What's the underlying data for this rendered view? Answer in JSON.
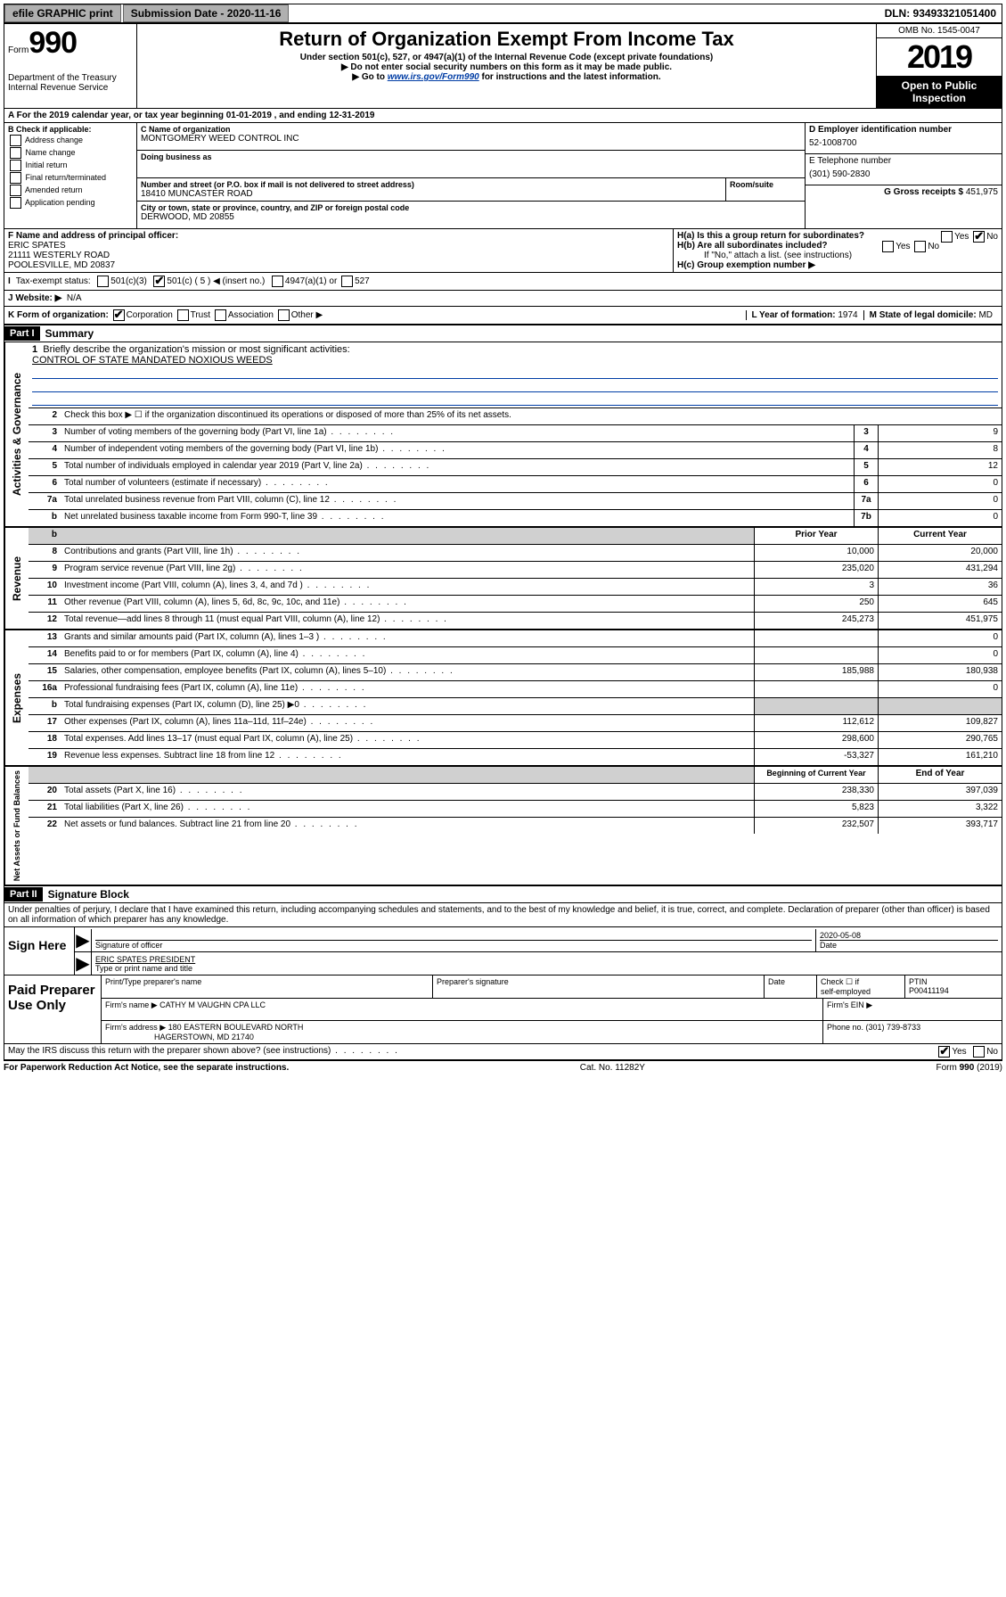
{
  "topbar": {
    "efile": "efile GRAPHIC print",
    "subdate_label": "Submission Date - ",
    "subdate": "2020-11-16",
    "dln": "DLN: 93493321051400"
  },
  "header": {
    "form_prefix": "Form",
    "form_no": "990",
    "dept1": "Department of the Treasury",
    "dept2": "Internal Revenue Service",
    "title": "Return of Organization Exempt From Income Tax",
    "sub1": "Under section 501(c), 527, or 4947(a)(1) of the Internal Revenue Code (except private foundations)",
    "sub2": "▶ Do not enter social security numbers on this form as it may be made public.",
    "sub3a": "▶ Go to ",
    "sub3link": "www.irs.gov/Form990",
    "sub3b": " for instructions and the latest information.",
    "omb": "OMB No. 1545-0047",
    "year": "2019",
    "inspect1": "Open to Public",
    "inspect2": "Inspection"
  },
  "rowA": "A   For the 2019 calendar year, or tax year beginning 01-01-2019     , and ending 12-31-2019",
  "colB": {
    "head": "B Check if applicable:",
    "items": [
      "Address change",
      "Name change",
      "Initial return",
      "Final return/terminated",
      "Amended return",
      "Application pending"
    ]
  },
  "colC": {
    "name_label": "C Name of organization",
    "name": "MONTGOMERY WEED CONTROL INC",
    "dba_label": "Doing business as",
    "addr_label": "Number and street (or P.O. box if mail is not delivered to street address)",
    "addr": "18410 MUNCASTER ROAD",
    "room_label": "Room/suite",
    "city_label": "City or town, state or province, country, and ZIP or foreign postal code",
    "city": "DERWOOD, MD  20855"
  },
  "colD": {
    "ein_label": "D Employer identification number",
    "ein": "52-1008700",
    "tel_label": "E Telephone number",
    "tel": "(301) 590-2830",
    "gross_label": "G Gross receipts $ ",
    "gross": "451,975"
  },
  "rowF": {
    "label": "F  Name and address of principal officer:",
    "name": "ERIC SPATES",
    "addr1": "21111 WESTERLY ROAD",
    "addr2": "POOLESVILLE, MD  20837"
  },
  "rowH": {
    "ha": "H(a)  Is this a group return for subordinates?",
    "hb": "H(b)  Are all subordinates included?",
    "hb2": "If \"No,\" attach a list. (see instructions)",
    "hc": "H(c)  Group exemption number ▶"
  },
  "rowI": {
    "label": "Tax-exempt status:",
    "o1": "501(c)(3)",
    "o2": "501(c) ( 5 ) ◀ (insert no.)",
    "o3": "4947(a)(1) or",
    "o4": "527"
  },
  "rowJ": {
    "label": "J   Website: ▶",
    "val": "N/A"
  },
  "rowK": {
    "label": "K Form of organization:",
    "o1": "Corporation",
    "o2": "Trust",
    "o3": "Association",
    "o4": "Other ▶",
    "l_label": "L Year of formation: ",
    "l_val": "1974",
    "m_label": "M State of legal domicile:",
    "m_val": "MD"
  },
  "part1": {
    "head": "Part I",
    "title": "Summary",
    "side1": "Activities & Governance",
    "side2": "Revenue",
    "side3": "Expenses",
    "side4": "Net Assets or Fund Balances",
    "l1": "Briefly describe the organization's mission or most significant activities:",
    "l1val": "CONTROL OF STATE MANDATED NOXIOUS WEEDS",
    "l2": "Check this box ▶ ☐  if the organization discontinued its operations or disposed of more than 25% of its net assets.",
    "rows_gov": [
      {
        "n": "3",
        "d": "Number of voting members of the governing body (Part VI, line 1a)",
        "b": "3",
        "v": "9"
      },
      {
        "n": "4",
        "d": "Number of independent voting members of the governing body (Part VI, line 1b)",
        "b": "4",
        "v": "8"
      },
      {
        "n": "5",
        "d": "Total number of individuals employed in calendar year 2019 (Part V, line 2a)",
        "b": "5",
        "v": "12"
      },
      {
        "n": "6",
        "d": "Total number of volunteers (estimate if necessary)",
        "b": "6",
        "v": "0"
      },
      {
        "n": "7a",
        "d": "Total unrelated business revenue from Part VIII, column (C), line 12",
        "b": "7a",
        "v": "0"
      },
      {
        "n": "b",
        "d": "Net unrelated business taxable income from Form 990-T, line 39",
        "b": "7b",
        "v": "0"
      }
    ],
    "head_prior": "Prior Year",
    "head_curr": "Current Year",
    "rows_rev": [
      {
        "n": "8",
        "d": "Contributions and grants (Part VIII, line 1h)",
        "p": "10,000",
        "c": "20,000"
      },
      {
        "n": "9",
        "d": "Program service revenue (Part VIII, line 2g)",
        "p": "235,020",
        "c": "431,294"
      },
      {
        "n": "10",
        "d": "Investment income (Part VIII, column (A), lines 3, 4, and 7d )",
        "p": "3",
        "c": "36"
      },
      {
        "n": "11",
        "d": "Other revenue (Part VIII, column (A), lines 5, 6d, 8c, 9c, 10c, and 11e)",
        "p": "250",
        "c": "645"
      },
      {
        "n": "12",
        "d": "Total revenue—add lines 8 through 11 (must equal Part VIII, column (A), line 12)",
        "p": "245,273",
        "c": "451,975"
      }
    ],
    "rows_exp": [
      {
        "n": "13",
        "d": "Grants and similar amounts paid (Part IX, column (A), lines 1–3 )",
        "p": "",
        "c": "0"
      },
      {
        "n": "14",
        "d": "Benefits paid to or for members (Part IX, column (A), line 4)",
        "p": "",
        "c": "0"
      },
      {
        "n": "15",
        "d": "Salaries, other compensation, employee benefits (Part IX, column (A), lines 5–10)",
        "p": "185,988",
        "c": "180,938"
      },
      {
        "n": "16a",
        "d": "Professional fundraising fees (Part IX, column (A), line 11e)",
        "p": "",
        "c": "0"
      },
      {
        "n": "b",
        "d": "Total fundraising expenses (Part IX, column (D), line 25) ▶0",
        "p": "shade",
        "c": "shade"
      },
      {
        "n": "17",
        "d": "Other expenses (Part IX, column (A), lines 11a–11d, 11f–24e)",
        "p": "112,612",
        "c": "109,827"
      },
      {
        "n": "18",
        "d": "Total expenses. Add lines 13–17 (must equal Part IX, column (A), line 25)",
        "p": "298,600",
        "c": "290,765"
      },
      {
        "n": "19",
        "d": "Revenue less expenses. Subtract line 18 from line 12",
        "p": "-53,327",
        "c": "161,210"
      }
    ],
    "head_begin": "Beginning of Current Year",
    "head_end": "End of Year",
    "rows_net": [
      {
        "n": "20",
        "d": "Total assets (Part X, line 16)",
        "p": "238,330",
        "c": "397,039"
      },
      {
        "n": "21",
        "d": "Total liabilities (Part X, line 26)",
        "p": "5,823",
        "c": "3,322"
      },
      {
        "n": "22",
        "d": "Net assets or fund balances. Subtract line 21 from line 20",
        "p": "232,507",
        "c": "393,717"
      }
    ]
  },
  "part2": {
    "head": "Part II",
    "title": "Signature Block",
    "decl": "Under penalties of perjury, I declare that I have examined this return, including accompanying schedules and statements, and to the best of my knowledge and belief, it is true, correct, and complete. Declaration of preparer (other than officer) is based on all information of which preparer has any knowledge."
  },
  "sign": {
    "label": "Sign Here",
    "sig_label": "Signature of officer",
    "date": "2020-05-08",
    "date_label": "Date",
    "name": "ERIC SPATES PRESIDENT",
    "name_label": "Type or print name and title"
  },
  "prep": {
    "label": "Paid Preparer Use Only",
    "h1": "Print/Type preparer's name",
    "h2": "Preparer's signature",
    "h3": "Date",
    "h4a": "Check ☐ if",
    "h4b": "self-employed",
    "h5": "PTIN",
    "ptin": "P00411194",
    "firm_label": "Firm's name     ▶",
    "firm": "CATHY M VAUGHN CPA LLC",
    "ein_label": "Firm's EIN ▶",
    "addr_label": "Firm's address ▶",
    "addr1": "180 EASTERN BOULEVARD NORTH",
    "addr2": "HAGERSTOWN, MD  21740",
    "phone_label": "Phone no. ",
    "phone": "(301) 739-8733"
  },
  "footer": {
    "discuss": "May the IRS discuss this return with the preparer shown above? (see instructions)",
    "paperwork": "For Paperwork Reduction Act Notice, see the separate instructions.",
    "cat": "Cat. No. 11282Y",
    "formno": "Form 990 (2019)"
  }
}
